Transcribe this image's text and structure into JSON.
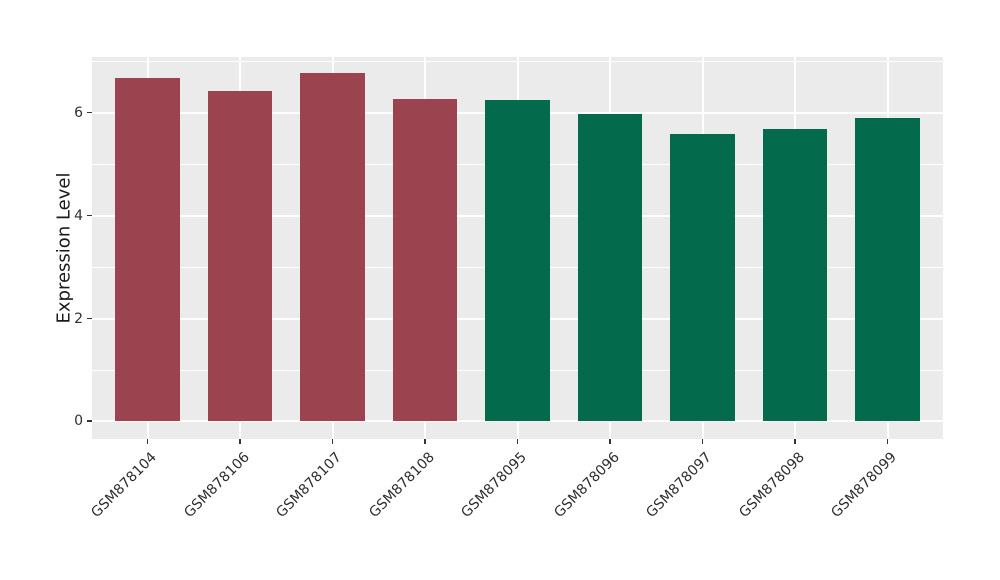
{
  "chart_data": {
    "type": "bar",
    "title": "",
    "xlabel": "",
    "ylabel": "Expression Level",
    "categories": [
      "GSM878104",
      "GSM878106",
      "GSM878107",
      "GSM878108",
      "GSM878095",
      "GSM878096",
      "GSM878097",
      "GSM878098",
      "GSM878099"
    ],
    "values": [
      6.68,
      6.42,
      6.76,
      6.26,
      6.25,
      5.97,
      5.59,
      5.68,
      5.9
    ],
    "bar_colors": [
      "#9b4450",
      "#9b4450",
      "#9b4450",
      "#9b4450",
      "#036a4b",
      "#036a4b",
      "#036a4b",
      "#036a4b",
      "#036a4b"
    ],
    "yticks": [
      0,
      2,
      4,
      6
    ],
    "ytick_labels": [
      "0",
      "2",
      "4",
      "6"
    ],
    "yticks_minor": [
      1,
      3,
      5,
      7
    ],
    "ylim": [
      -0.34,
      7.08
    ],
    "grid": true,
    "legend": "none",
    "colors": {
      "group_a_bar": "#9b4450",
      "group_b_bar": "#036a4b",
      "panel_background": "#ebebeb",
      "gridline": "#ffffff",
      "tick_mark": "#333333",
      "tick_label_text": "#2e2e2e",
      "axis_title_text": "#1a1a1a"
    }
  }
}
